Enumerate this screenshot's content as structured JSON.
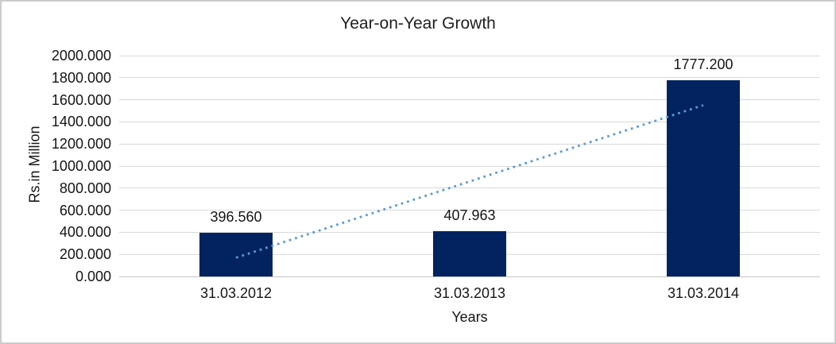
{
  "chart_data": {
    "type": "bar",
    "title": "Year-on-Year Growth",
    "xlabel": "Years",
    "ylabel": "Rs.in Million",
    "categories": [
      "31.03.2012",
      "31.03.2013",
      "31.03.2014"
    ],
    "values": [
      396.56,
      407.963,
      1777.2
    ],
    "data_labels": [
      "396.560",
      "407.963",
      "1777.200"
    ],
    "ylim": [
      0,
      2000
    ],
    "y_tick_step": 200,
    "y_tick_labels": [
      "2000.000",
      "1800.000",
      "1600.000",
      "1400.000",
      "1200.000",
      "1000.000",
      "800.000",
      "600.000",
      "400.000",
      "200.000",
      "0.000"
    ],
    "grid": true,
    "legend": "none",
    "trendline": {
      "type": "linear",
      "style": "dotted",
      "start_value": 170.3,
      "end_value": 1550.9,
      "color": "#5b9bd5"
    },
    "bar_color": "#02235f",
    "gridline_color": "#d9d9d9",
    "axis_line_color": "#c6c6c6",
    "frame_border_color": "#cccccc",
    "text_color": "#151515"
  }
}
